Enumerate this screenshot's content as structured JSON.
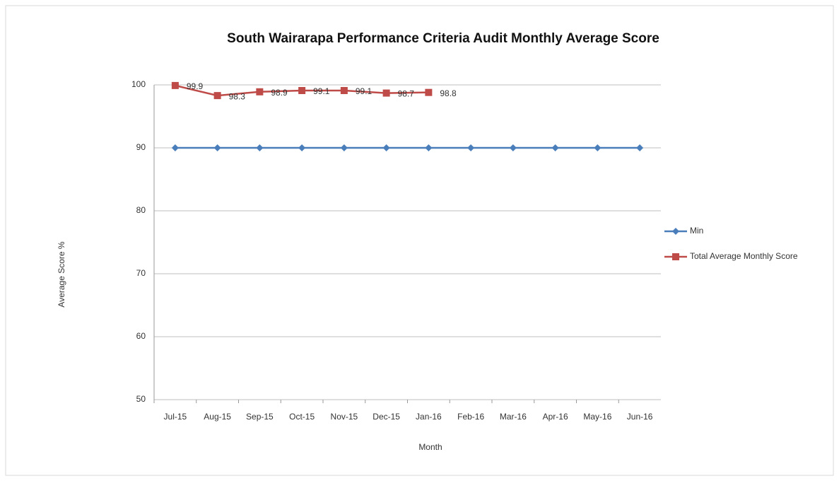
{
  "chart_data": {
    "type": "line",
    "title": "South Wairarapa Performance Criteria Audit  Monthly Average Score",
    "x_label": "Month",
    "y_label": "Average Score %",
    "categories": [
      "Jul-15",
      "Aug-15",
      "Sep-15",
      "Oct-15",
      "Nov-15",
      "Dec-15",
      "Jan-16",
      "Feb-16",
      "Mar-16",
      "Apr-16",
      "May-16",
      "Jun-16"
    ],
    "series": [
      {
        "name": "Min",
        "color": "#4a7ebb",
        "marker": "diamond",
        "data_labels": false,
        "values": [
          90,
          90,
          90,
          90,
          90,
          90,
          90,
          90,
          90,
          90,
          90,
          90
        ]
      },
      {
        "name": "Total Average Monthly Score",
        "color": "#be4b48",
        "marker": "square",
        "data_labels": true,
        "values": [
          99.9,
          98.3,
          98.9,
          99.1,
          99.1,
          98.7,
          98.8,
          null,
          null,
          null,
          null,
          null
        ]
      }
    ],
    "ylim": [
      50,
      100
    ],
    "yticks": [
      50,
      60,
      70,
      80,
      90,
      100
    ],
    "grid": true,
    "legend": "right"
  }
}
